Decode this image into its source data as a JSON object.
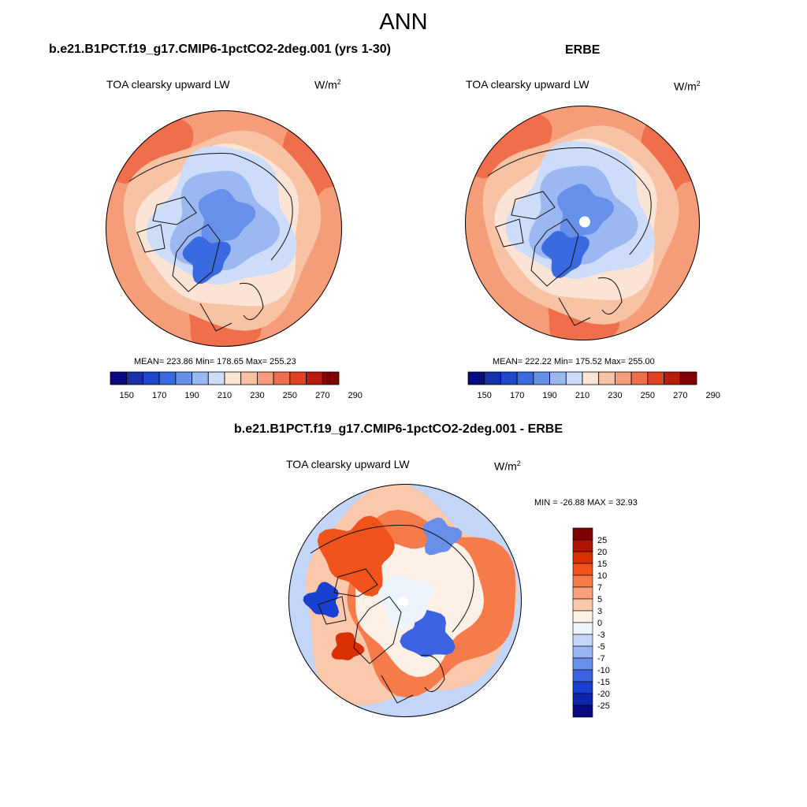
{
  "page": {
    "title": "ANN"
  },
  "panels": [
    {
      "title": "b.e21.B1PCT.f19_g17.CMIP6-1pctCO2-2deg.001 (yrs 1-30)",
      "variable": "TOA clearsky upward LW",
      "units_base": "W/m",
      "units_exp": "2",
      "stats": "MEAN= 223.86  Min= 178.65  Max= 255.23",
      "colorbar": {
        "orientation": "horizontal",
        "colors": [
          "#0a0a80",
          "#1730a8",
          "#2048cc",
          "#3a6ae0",
          "#6690ea",
          "#9bb8f2",
          "#cddcf8",
          "#fbe4d6",
          "#f8c2a4",
          "#f59c78",
          "#ef6f4c",
          "#de4222",
          "#b81a0c",
          "#7f0000"
        ],
        "labels": [
          "150",
          "170",
          "190",
          "210",
          "230",
          "250",
          "270",
          "290"
        ]
      }
    },
    {
      "title": "ERBE",
      "variable": "TOA clearsky upward LW",
      "units_base": "W/m",
      "units_exp": "2",
      "stats": "MEAN= 222.22  Min= 175.52  Max= 255.00",
      "colorbar": {
        "orientation": "horizontal",
        "colors": [
          "#0a0a80",
          "#1730a8",
          "#2048cc",
          "#3a6ae0",
          "#6690ea",
          "#9bb8f2",
          "#cddcf8",
          "#fbe4d6",
          "#f8c2a4",
          "#f59c78",
          "#ef6f4c",
          "#de4222",
          "#b81a0c",
          "#7f0000"
        ],
        "labels": [
          "150",
          "170",
          "190",
          "210",
          "230",
          "250",
          "270",
          "290"
        ]
      }
    },
    {
      "title": "b.e21.B1PCT.f19_g17.CMIP6-1pctCO2-2deg.001 - ERBE",
      "variable": "TOA clearsky upward LW",
      "units_base": "W/m",
      "units_exp": "2",
      "stats": "MIN = -26.88 MAX =  32.93",
      "colorbar": {
        "orientation": "vertical",
        "colors": [
          "#7f0000",
          "#b01400",
          "#d83000",
          "#f0541c",
          "#f77a4a",
          "#f9a07c",
          "#fbc8ac",
          "#fdf0e6",
          "#eef4fc",
          "#c4d6f8",
          "#98b6f2",
          "#6890ea",
          "#3c64e2",
          "#1a40d2",
          "#0c26b0",
          "#0a0a80"
        ],
        "labels": [
          "25",
          "20",
          "15",
          "10",
          "7",
          "5",
          "3",
          "0",
          "-3",
          "-5",
          "-7",
          "-10",
          "-15",
          "-20",
          "-25"
        ]
      }
    }
  ]
}
